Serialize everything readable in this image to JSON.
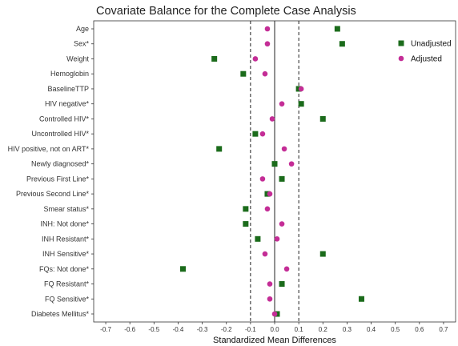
{
  "chart_data": {
    "type": "scatter",
    "title": "Covariate Balance for the Complete Case Analysis",
    "xlabel": "Standardized Mean Differences",
    "ylabel": "",
    "xlim": [
      -0.75,
      0.75
    ],
    "x_ticks": [
      "-0.7",
      "-0.6",
      "-0.5",
      "-0.4",
      "-0.3",
      "-0.2",
      "-0.1",
      "0.0",
      "0.1",
      "0.2",
      "0.3",
      "0.4",
      "0.5",
      "0.6",
      "0.7"
    ],
    "x_tick_values": [
      -0.7,
      -0.6,
      -0.5,
      -0.4,
      -0.3,
      -0.2,
      -0.1,
      0.0,
      0.1,
      0.2,
      0.3,
      0.4,
      0.5,
      0.6,
      0.7
    ],
    "reference_lines": [
      -0.1,
      0.0,
      0.1
    ],
    "categories": [
      "Age",
      "Sex*",
      "Weight",
      "Hemoglobin",
      "BaselineTTP",
      "HIV negative*",
      "Controlled HIV*",
      "Uncontrolled HIV*",
      "HIV positive, not on ART*",
      "Newly diagnosed*",
      "Previous First Line*",
      "Previous Second Line*",
      "Smear status*",
      "INH: Not done*",
      "INH Resistant*",
      "INH Sensitive*",
      "FQs: Not done*",
      "FQ Resistant*",
      "FQ Sensitive*",
      "Diabetes Mellitus*"
    ],
    "series": [
      {
        "name": "Unadjusted",
        "color": "#1b6b1b",
        "marker": "square",
        "values": [
          0.26,
          0.28,
          -0.25,
          -0.13,
          0.1,
          0.11,
          0.2,
          -0.08,
          -0.23,
          0.0,
          0.03,
          -0.03,
          -0.12,
          -0.12,
          -0.07,
          0.2,
          -0.38,
          0.03,
          0.36,
          0.01
        ]
      },
      {
        "name": "Adjusted",
        "color": "#c42d96",
        "marker": "circle",
        "values": [
          -0.03,
          -0.03,
          -0.08,
          -0.04,
          0.11,
          0.03,
          -0.01,
          -0.05,
          0.04,
          0.07,
          -0.05,
          -0.02,
          -0.03,
          0.03,
          0.01,
          -0.04,
          0.05,
          -0.02,
          -0.02,
          0.0
        ]
      }
    ],
    "legend_position": "top-right",
    "grid": false
  }
}
